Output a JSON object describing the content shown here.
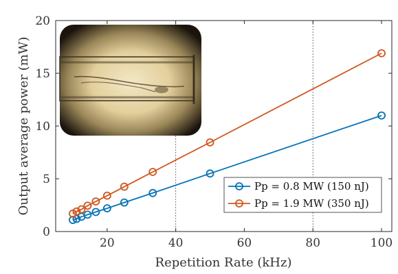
{
  "chart_data": {
    "type": "line",
    "title": "",
    "xlabel": "Repetition Rate (kHz)",
    "ylabel": "Output average power (mW)",
    "xlim": [
      5,
      103
    ],
    "ylim": [
      0,
      20
    ],
    "xticks": [
      20,
      40,
      60,
      80,
      100
    ],
    "yticks": [
      0,
      5,
      10,
      15,
      20
    ],
    "reference_lines_x": [
      40,
      80
    ],
    "legend_position": "lower-right",
    "series": [
      {
        "name": "Pp = 0.8 MW (150 nJ)",
        "color": "#0072BD",
        "x": [
          10,
          11.1,
          12.5,
          14.3,
          16.7,
          20,
          25,
          33.3,
          50,
          100
        ],
        "y": [
          1.1,
          1.2,
          1.4,
          1.6,
          1.85,
          2.2,
          2.75,
          3.65,
          5.5,
          11.0
        ]
      },
      {
        "name": "Pp = 1.9 MW (350 nJ)",
        "color": "#D95319",
        "x": [
          10,
          11.1,
          12.5,
          14.3,
          16.7,
          20,
          25,
          33.3,
          50,
          100
        ],
        "y": [
          1.7,
          1.9,
          2.1,
          2.45,
          2.85,
          3.4,
          4.25,
          5.65,
          8.45,
          16.9
        ]
      }
    ],
    "inset": {
      "description_icon": "micrograph-photo-icon"
    }
  }
}
